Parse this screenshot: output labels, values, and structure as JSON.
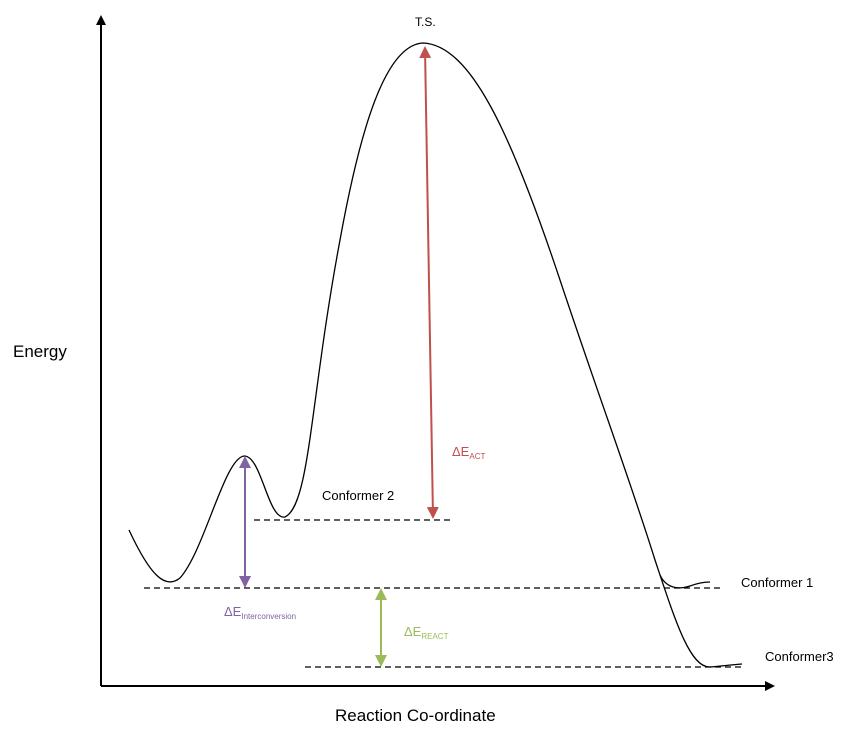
{
  "axes": {
    "y_label": "Energy",
    "x_label": "Reaction Co-ordinate"
  },
  "labels": {
    "ts": "T.S.",
    "conformer_1": "Conformer 1",
    "conformer_2": "Conformer 2",
    "conformer_3": "Conformer3"
  },
  "deltas": {
    "act": {
      "symbol": "ΔE",
      "subscript": "ACT",
      "color": "#c0504d"
    },
    "react": {
      "symbol": "ΔE",
      "subscript": "REACT",
      "color": "#9bbb59"
    },
    "interconversion": {
      "symbol": "ΔE",
      "subscript": "Interconversion",
      "color": "#8064a2"
    }
  }
}
